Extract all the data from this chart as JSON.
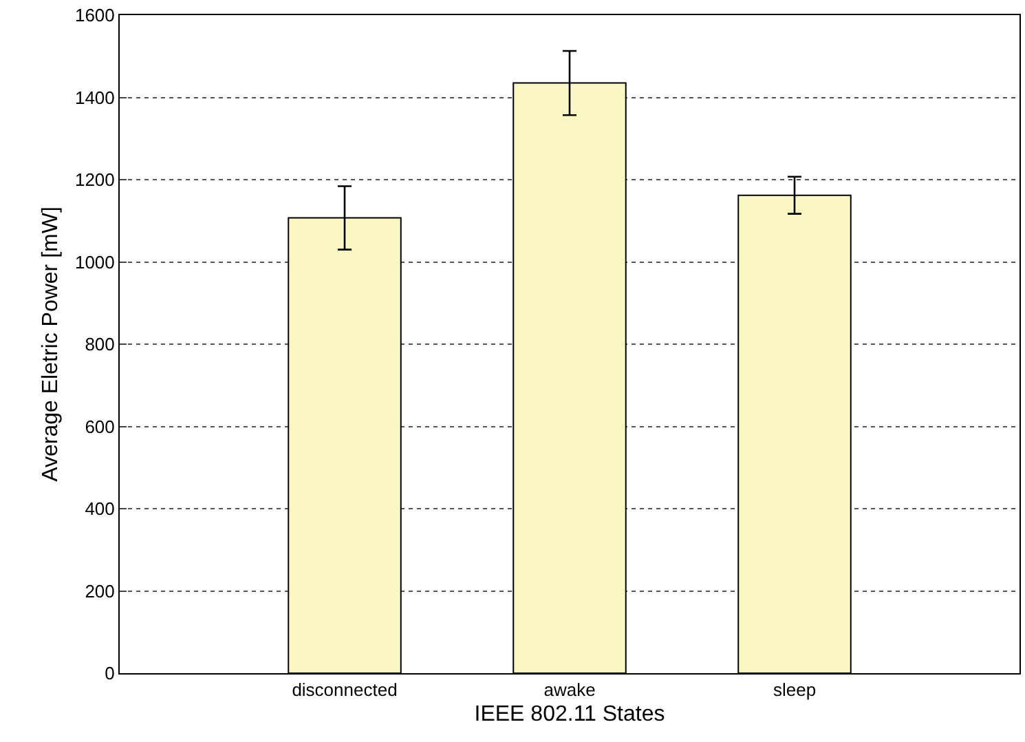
{
  "chart_data": {
    "type": "bar",
    "xlabel": "IEEE 802.11 States",
    "ylabel": "Average Eletric Power [mW]",
    "categories": [
      "disconnected",
      "awake",
      "sleep"
    ],
    "values": [
      1107,
      1435,
      1162
    ],
    "errors": [
      77,
      78,
      45
    ],
    "color": "#fbf7c4",
    "ylim": [
      0,
      1600
    ],
    "yticks": [
      0,
      200,
      400,
      600,
      800,
      1000,
      1200,
      1400,
      1600
    ],
    "grid": "y",
    "legend": false
  }
}
